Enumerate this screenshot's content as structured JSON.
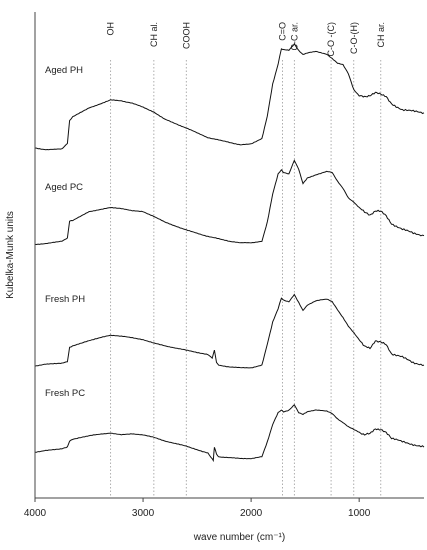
{
  "chart_data": {
    "type": "line",
    "title": "",
    "xlabel": "wave number (cm⁻¹)",
    "ylabel": "Kubelka-Munk units",
    "xlim": [
      4000,
      400
    ],
    "x_reversed": true,
    "x_ticks": [
      "4000",
      "3000",
      "2000",
      "1000"
    ],
    "x_tick_values": [
      4000,
      3000,
      2000,
      1000
    ],
    "grid": false,
    "y_ticks_shown": false,
    "reference_lines": [
      {
        "label": "OH",
        "x": 3300
      },
      {
        "label": "CH al.",
        "x": 2900
      },
      {
        "label": "COOH",
        "x": 2600
      },
      {
        "label": "C=O",
        "x": 1710
      },
      {
        "label": "C-C ar.",
        "x": 1600
      },
      {
        "label": "C-O -(C)",
        "x": 1260
      },
      {
        "label": "C-O-(H)",
        "x": 1050
      },
      {
        "label": "CH ar.",
        "x": 800
      }
    ],
    "series": [
      {
        "name": "Aged PH",
        "points": [
          [
            4000,
            0.8
          ],
          [
            3900,
            0.78
          ],
          [
            3750,
            0.79
          ],
          [
            3700,
            0.86
          ],
          [
            3680,
            1.14
          ],
          [
            3650,
            1.19
          ],
          [
            3500,
            1.3
          ],
          [
            3300,
            1.4
          ],
          [
            3200,
            1.39
          ],
          [
            3100,
            1.36
          ],
          [
            3000,
            1.31
          ],
          [
            2900,
            1.25
          ],
          [
            2800,
            1.16
          ],
          [
            2600,
            1.05
          ],
          [
            2400,
            0.93
          ],
          [
            2300,
            0.9
          ],
          [
            2200,
            0.87
          ],
          [
            2100,
            0.84
          ],
          [
            2000,
            0.85
          ],
          [
            1900,
            0.92
          ],
          [
            1850,
            1.2
          ],
          [
            1800,
            1.6
          ],
          [
            1750,
            1.85
          ],
          [
            1720,
            2.04
          ],
          [
            1700,
            2.03
          ],
          [
            1650,
            2.02
          ],
          [
            1600,
            2.1
          ],
          [
            1560,
            2.02
          ],
          [
            1520,
            1.97
          ],
          [
            1480,
            1.99
          ],
          [
            1400,
            2.01
          ],
          [
            1300,
            1.97
          ],
          [
            1250,
            1.92
          ],
          [
            1200,
            1.86
          ],
          [
            1150,
            1.84
          ],
          [
            1100,
            1.73
          ],
          [
            1050,
            1.53
          ],
          [
            1000,
            1.45
          ],
          [
            950,
            1.44
          ],
          [
            900,
            1.46
          ],
          [
            850,
            1.49
          ],
          [
            800,
            1.47
          ],
          [
            750,
            1.45
          ],
          [
            700,
            1.35
          ],
          [
            600,
            1.28
          ],
          [
            500,
            1.26
          ],
          [
            400,
            1.24
          ]
        ]
      },
      {
        "name": "Aged PC",
        "points": [
          [
            4000,
            0.82
          ],
          [
            3900,
            0.83
          ],
          [
            3750,
            0.86
          ],
          [
            3700,
            0.9
          ],
          [
            3680,
            1.11
          ],
          [
            3650,
            1.12
          ],
          [
            3500,
            1.23
          ],
          [
            3300,
            1.28
          ],
          [
            3200,
            1.27
          ],
          [
            3100,
            1.24
          ],
          [
            3000,
            1.23
          ],
          [
            2900,
            1.17
          ],
          [
            2800,
            1.1
          ],
          [
            2600,
            1.0
          ],
          [
            2400,
            0.92
          ],
          [
            2300,
            0.89
          ],
          [
            2200,
            0.86
          ],
          [
            2100,
            0.84
          ],
          [
            2000,
            0.84
          ],
          [
            1900,
            0.86
          ],
          [
            1850,
            1.1
          ],
          [
            1800,
            1.45
          ],
          [
            1750,
            1.7
          ],
          [
            1720,
            1.75
          ],
          [
            1700,
            1.72
          ],
          [
            1650,
            1.7
          ],
          [
            1600,
            1.87
          ],
          [
            1560,
            1.76
          ],
          [
            1520,
            1.58
          ],
          [
            1480,
            1.65
          ],
          [
            1400,
            1.69
          ],
          [
            1300,
            1.73
          ],
          [
            1250,
            1.72
          ],
          [
            1200,
            1.61
          ],
          [
            1150,
            1.52
          ],
          [
            1100,
            1.4
          ],
          [
            1050,
            1.35
          ],
          [
            1000,
            1.28
          ],
          [
            950,
            1.22
          ],
          [
            900,
            1.19
          ],
          [
            850,
            1.24
          ],
          [
            800,
            1.23
          ],
          [
            750,
            1.18
          ],
          [
            700,
            1.08
          ],
          [
            600,
            1.01
          ],
          [
            500,
            0.96
          ],
          [
            400,
            0.93
          ]
        ]
      },
      {
        "name": "Fresh PH",
        "points": [
          [
            4000,
            0.75
          ],
          [
            3900,
            0.77
          ],
          [
            3750,
            0.78
          ],
          [
            3700,
            0.8
          ],
          [
            3680,
            0.96
          ],
          [
            3650,
            0.98
          ],
          [
            3500,
            1.04
          ],
          [
            3300,
            1.1
          ],
          [
            3200,
            1.09
          ],
          [
            3100,
            1.07
          ],
          [
            3000,
            1.05
          ],
          [
            2900,
            1.01
          ],
          [
            2800,
            0.98
          ],
          [
            2600,
            0.93
          ],
          [
            2400,
            0.88
          ],
          [
            2360,
            0.84
          ],
          [
            2340,
            0.93
          ],
          [
            2320,
            0.79
          ],
          [
            2300,
            0.76
          ],
          [
            2200,
            0.74
          ],
          [
            2100,
            0.73
          ],
          [
            2000,
            0.73
          ],
          [
            1900,
            0.76
          ],
          [
            1850,
            1.0
          ],
          [
            1800,
            1.25
          ],
          [
            1750,
            1.4
          ],
          [
            1720,
            1.52
          ],
          [
            1700,
            1.5
          ],
          [
            1650,
            1.48
          ],
          [
            1600,
            1.56
          ],
          [
            1560,
            1.47
          ],
          [
            1520,
            1.38
          ],
          [
            1480,
            1.44
          ],
          [
            1400,
            1.49
          ],
          [
            1300,
            1.51
          ],
          [
            1250,
            1.48
          ],
          [
            1200,
            1.39
          ],
          [
            1150,
            1.3
          ],
          [
            1100,
            1.2
          ],
          [
            1050,
            1.13
          ],
          [
            1000,
            1.05
          ],
          [
            950,
            0.97
          ],
          [
            900,
            0.95
          ],
          [
            850,
            1.04
          ],
          [
            800,
            1.02
          ],
          [
            750,
            0.99
          ],
          [
            700,
            0.89
          ],
          [
            600,
            0.85
          ],
          [
            500,
            0.79
          ],
          [
            400,
            0.76
          ]
        ]
      },
      {
        "name": "Fresh PC",
        "points": [
          [
            4000,
            0.78
          ],
          [
            3900,
            0.8
          ],
          [
            3750,
            0.82
          ],
          [
            3700,
            0.84
          ],
          [
            3680,
            0.91
          ],
          [
            3650,
            0.93
          ],
          [
            3500,
            0.97
          ],
          [
            3300,
            1.0
          ],
          [
            3200,
            0.98
          ],
          [
            3100,
            0.99
          ],
          [
            3000,
            0.98
          ],
          [
            2900,
            0.95
          ],
          [
            2800,
            0.91
          ],
          [
            2600,
            0.85
          ],
          [
            2450,
            0.79
          ],
          [
            2400,
            0.77
          ],
          [
            2370,
            0.72
          ],
          [
            2350,
            0.69
          ],
          [
            2340,
            0.84
          ],
          [
            2320,
            0.76
          ],
          [
            2300,
            0.73
          ],
          [
            2200,
            0.72
          ],
          [
            2100,
            0.71
          ],
          [
            2000,
            0.71
          ],
          [
            1900,
            0.73
          ],
          [
            1850,
            0.9
          ],
          [
            1800,
            1.1
          ],
          [
            1750,
            1.23
          ],
          [
            1720,
            1.26
          ],
          [
            1700,
            1.24
          ],
          [
            1650,
            1.26
          ],
          [
            1600,
            1.32
          ],
          [
            1560,
            1.23
          ],
          [
            1520,
            1.21
          ],
          [
            1480,
            1.24
          ],
          [
            1400,
            1.26
          ],
          [
            1300,
            1.25
          ],
          [
            1250,
            1.22
          ],
          [
            1200,
            1.16
          ],
          [
            1150,
            1.12
          ],
          [
            1100,
            1.07
          ],
          [
            1050,
            1.04
          ],
          [
            1000,
            1.01
          ],
          [
            950,
            0.98
          ],
          [
            900,
            0.99
          ],
          [
            850,
            1.05
          ],
          [
            800,
            1.04
          ],
          [
            750,
            1.0
          ],
          [
            700,
            0.94
          ],
          [
            600,
            0.9
          ],
          [
            500,
            0.87
          ],
          [
            400,
            0.84
          ]
        ]
      }
    ]
  }
}
